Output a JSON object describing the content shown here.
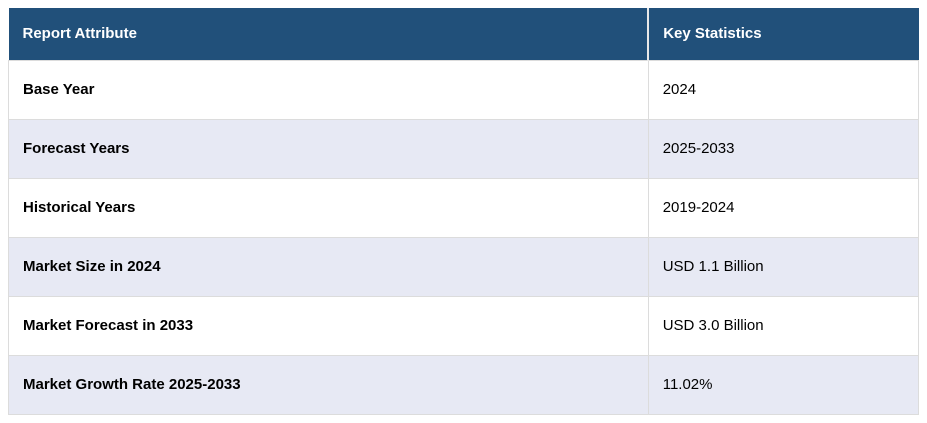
{
  "table": {
    "columns": [
      {
        "label": "Report Attribute"
      },
      {
        "label": "Key Statistics"
      }
    ],
    "rows": [
      {
        "attribute": "Base Year",
        "value": "2024"
      },
      {
        "attribute": "Forecast Years",
        "value": "2025-2033"
      },
      {
        "attribute": "Historical Years",
        "value": "2019-2024"
      },
      {
        "attribute": "Market Size in 2024",
        "value": "USD 1.1 Billion"
      },
      {
        "attribute": "Market Forecast in 2033",
        "value": "USD 3.0 Billion"
      },
      {
        "attribute": "Market Growth Rate 2025-2033",
        "value": "11.02%"
      }
    ],
    "colors": {
      "header_bg": "#21507A",
      "header_text": "#FFFFFF",
      "row_bg": "#FFFFFF",
      "row_alt_bg": "#E7E9F4",
      "border": "#DCDCDC",
      "header_divider": "#E8E8E8",
      "body_text": "#000000"
    }
  }
}
